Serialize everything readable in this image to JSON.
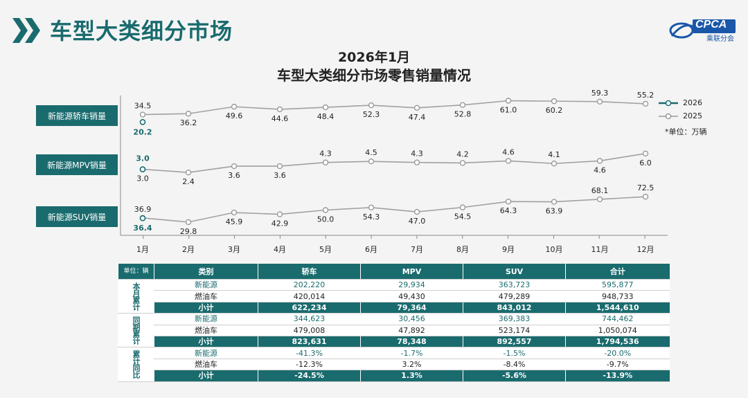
{
  "header": {
    "title": "车型大类细分市场",
    "logo_text": "CPCA",
    "logo_sub": "乘联分会"
  },
  "chart_title": {
    "line1": "2026年1月",
    "line2": "车型大类细分市场零售销量情况"
  },
  "legend": {
    "items": [
      {
        "label": "2026",
        "color": "#1a6b6e"
      },
      {
        "label": "2025",
        "color": "#999999"
      }
    ],
    "unit_note": "*单位：万辆"
  },
  "chart_data": {
    "type": "line",
    "categories": [
      "1月",
      "2月",
      "3月",
      "4月",
      "5月",
      "6月",
      "7月",
      "8月",
      "9月",
      "10月",
      "11月",
      "12月"
    ],
    "panels": [
      {
        "label": "新能源轿车销量",
        "series": [
          {
            "name": "2025",
            "values": [
              34.5,
              36.2,
              49.6,
              44.6,
              48.4,
              52.3,
              47.4,
              52.8,
              61.0,
              60.2,
              59.3,
              55.2
            ]
          },
          {
            "name": "2026",
            "values": [
              20.2
            ]
          }
        ],
        "ylim": [
          18,
          63
        ]
      },
      {
        "label": "新能源MPV销量",
        "series": [
          {
            "name": "2025",
            "values": [
              3.0,
              2.4,
              3.6,
              3.6,
              4.3,
              4.5,
              4.3,
              4.2,
              4.6,
              4.1,
              4.6,
              6.0
            ]
          },
          {
            "name": "2026",
            "values": [
              3.0
            ]
          }
        ],
        "ylim": [
          1.5,
          6.5
        ]
      },
      {
        "label": "新能源SUV销量",
        "series": [
          {
            "name": "2025",
            "values": [
              36.9,
              29.8,
              45.9,
              42.9,
              50.0,
              54.3,
              47.0,
              54.5,
              64.3,
              63.9,
              68.1,
              72.5
            ]
          },
          {
            "name": "2026",
            "values": [
              36.4
            ]
          }
        ],
        "ylim": [
          25,
          75
        ]
      }
    ]
  },
  "table": {
    "unit": "单位：辆",
    "headers": [
      "类别",
      "轿车",
      "MPV",
      "SUV",
      "合计"
    ],
    "groups": [
      {
        "label": "本月累计",
        "rows": [
          {
            "type": "nev",
            "cells": [
              "新能源",
              "202,220",
              "29,934",
              "363,723",
              "595,877"
            ]
          },
          {
            "type": "fuel",
            "cells": [
              "燃油车",
              "420,014",
              "49,430",
              "479,289",
              "948,733"
            ]
          },
          {
            "type": "sub",
            "cells": [
              "小计",
              "622,234",
              "79,364",
              "843,012",
              "1,544,610"
            ]
          }
        ]
      },
      {
        "label": "同期累计",
        "rows": [
          {
            "type": "nev",
            "cells": [
              "新能源",
              "344,623",
              "30,456",
              "369,383",
              "744,462"
            ]
          },
          {
            "type": "fuel",
            "cells": [
              "燃油车",
              "479,008",
              "47,892",
              "523,174",
              "1,050,074"
            ]
          },
          {
            "type": "sub",
            "cells": [
              "小计",
              "823,631",
              "78,348",
              "892,557",
              "1,794,536"
            ]
          }
        ]
      },
      {
        "label": "累计同比",
        "rows": [
          {
            "type": "nev",
            "cells": [
              "新能源",
              "-41.3%",
              "-1.7%",
              "-1.5%",
              "-20.0%"
            ]
          },
          {
            "type": "fuel",
            "cells": [
              "燃油车",
              "-12.3%",
              "3.2%",
              "-8.4%",
              "-9.7%"
            ]
          },
          {
            "type": "sub",
            "cells": [
              "小计",
              "-24.5%",
              "1.3%",
              "-5.6%",
              "-13.9%"
            ]
          }
        ]
      }
    ]
  }
}
